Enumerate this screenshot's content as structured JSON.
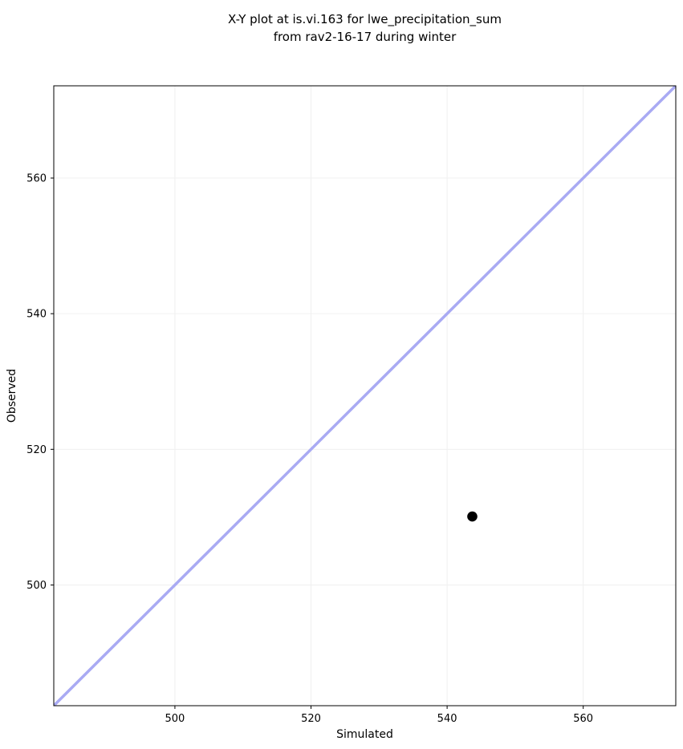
{
  "chart_data": {
    "type": "scatter",
    "title": "X-Y plot at is.vi.163 for lwe_precipitation_sum\nfrom rav2-16-17 during winter",
    "title_lines": [
      "X-Y plot at is.vi.163 for lwe_precipitation_sum",
      "from rav2-16-17 during winter"
    ],
    "xlabel": "Simulated",
    "ylabel": "Observed",
    "xlim": [
      482.2,
      573.6
    ],
    "ylim": [
      482.2,
      573.6
    ],
    "xticks": [
      500,
      520,
      540,
      560
    ],
    "yticks": [
      500,
      520,
      540,
      560
    ],
    "grid": true,
    "legend": "none",
    "points": [
      {
        "x": 543.7,
        "y": 510.1
      }
    ],
    "identity_line": {
      "present": true,
      "from": 482.2,
      "to": 573.6,
      "color": "#a9aaf3",
      "width": 3.5
    },
    "colors": {
      "marker": "#000000",
      "grid": "#f0f0f0",
      "spine": "#000000",
      "tick": "#000000",
      "background": "#ffffff"
    },
    "marker_radius": 6.3
  }
}
